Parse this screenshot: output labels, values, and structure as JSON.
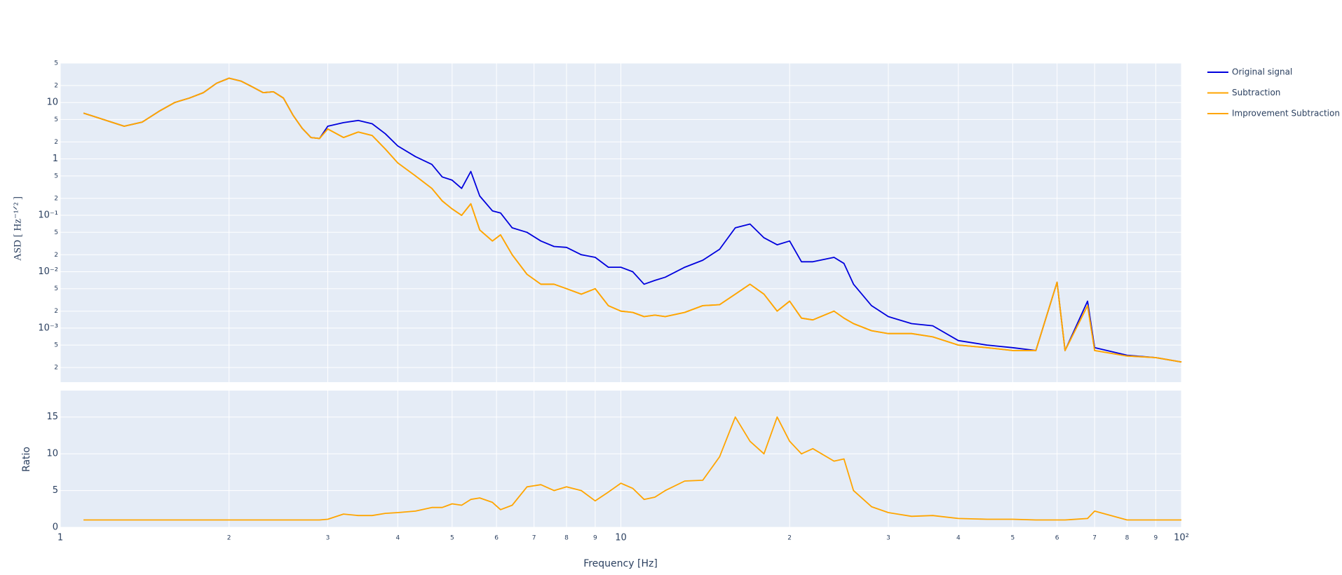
{
  "chart_data": [
    {
      "type": "line",
      "ylabel": "ASD [ Hz⁻¹ᐟ² ]",
      "xlog": true,
      "ylog": true,
      "grid": true,
      "legend": "right",
      "xlim": [
        1,
        100
      ],
      "ylim": [
        0.00011,
        50
      ],
      "yticks": [
        {
          "value": 50,
          "label": "5"
        },
        {
          "value": 20,
          "label": "2"
        },
        10,
        {
          "value": 5,
          "label": "5"
        },
        {
          "value": 2,
          "label": "2"
        },
        1,
        {
          "value": 0.5,
          "label": "5"
        },
        {
          "value": 0.2,
          "label": "2"
        },
        {
          "value": 0.1,
          "label": "10⁻¹"
        },
        {
          "value": 0.05,
          "label": "5"
        },
        {
          "value": 0.02,
          "label": "2"
        },
        {
          "value": 0.01,
          "label": "10⁻²"
        },
        {
          "value": 0.005,
          "label": "5"
        },
        {
          "value": 0.002,
          "label": "2"
        },
        {
          "value": 0.001,
          "label": "10⁻³"
        },
        {
          "value": 0.0005,
          "label": "5"
        },
        {
          "value": 0.0002,
          "label": "2"
        }
      ],
      "x": [
        1.1,
        1.3,
        1.4,
        1.5,
        1.6,
        1.7,
        1.8,
        1.9,
        2.0,
        2.1,
        2.2,
        2.3,
        2.4,
        2.5,
        2.6,
        2.7,
        2.8,
        2.9,
        3.0,
        3.2,
        3.4,
        3.6,
        3.8,
        4.0,
        4.3,
        4.6,
        4.8,
        5.0,
        5.2,
        5.4,
        5.6,
        5.9,
        6.1,
        6.4,
        6.8,
        7.2,
        7.6,
        8.0,
        8.5,
        9.0,
        9.5,
        10,
        10.5,
        11,
        11.5,
        12,
        13,
        14,
        15,
        16,
        17,
        18,
        19,
        20,
        21,
        22,
        24,
        25,
        26,
        28,
        30,
        33,
        36,
        40,
        45,
        50,
        55,
        60,
        62,
        68,
        70,
        80,
        90,
        100
      ],
      "series": [
        {
          "name": "Original signal",
          "color": "#0000dd",
          "values": [
            6.5,
            3.8,
            4.5,
            7,
            10,
            12,
            15,
            22,
            27,
            24,
            19,
            15,
            15.5,
            12,
            6,
            3.5,
            2.4,
            2.3,
            3.8,
            4.4,
            4.8,
            4.2,
            2.8,
            1.7,
            1.1,
            0.8,
            0.48,
            0.42,
            0.3,
            0.6,
            0.22,
            0.12,
            0.11,
            0.06,
            0.05,
            0.035,
            0.028,
            0.027,
            0.02,
            0.018,
            0.012,
            0.012,
            0.01,
            0.006,
            0.007,
            0.008,
            0.012,
            0.016,
            0.025,
            0.06,
            0.07,
            0.04,
            0.03,
            0.035,
            0.015,
            0.015,
            0.018,
            0.014,
            0.006,
            0.0025,
            0.0016,
            0.0012,
            0.0011,
            0.0006,
            0.0005,
            0.00045,
            0.0004,
            0.0065,
            0.0004,
            0.003,
            0.00045,
            0.00033,
            0.0003,
            0.00025
          ]
        },
        {
          "name": "Subtraction",
          "color": "#ffa500",
          "values": [
            6.5,
            3.8,
            4.5,
            7,
            10,
            12,
            15,
            22,
            27,
            24,
            19,
            15,
            15.5,
            12,
            6,
            3.5,
            2.4,
            2.3,
            3.4,
            2.4,
            3.0,
            2.6,
            1.5,
            0.85,
            0.5,
            0.3,
            0.18,
            0.13,
            0.1,
            0.16,
            0.055,
            0.035,
            0.045,
            0.02,
            0.009,
            0.006,
            0.006,
            0.005,
            0.004,
            0.005,
            0.0025,
            0.002,
            0.0019,
            0.0016,
            0.0017,
            0.0016,
            0.0019,
            0.0025,
            0.0026,
            0.004,
            0.006,
            0.004,
            0.002,
            0.003,
            0.0015,
            0.0014,
            0.002,
            0.0015,
            0.0012,
            0.0009,
            0.0008,
            0.0008,
            0.0007,
            0.0005,
            0.00045,
            0.0004,
            0.0004,
            0.0065,
            0.0004,
            0.0025,
            0.0004,
            0.00032,
            0.0003,
            0.00025
          ]
        },
        {
          "name": "Improvement Subtraction",
          "color": "#ffa500",
          "values": [
            6.5,
            3.8,
            4.5,
            7,
            10,
            12,
            15,
            22,
            27,
            24,
            19,
            15,
            15.5,
            12,
            6,
            3.5,
            2.4,
            2.3,
            3.4,
            2.4,
            3.0,
            2.6,
            1.5,
            0.85,
            0.5,
            0.3,
            0.18,
            0.13,
            0.1,
            0.16,
            0.055,
            0.035,
            0.045,
            0.02,
            0.009,
            0.006,
            0.006,
            0.005,
            0.004,
            0.005,
            0.0025,
            0.002,
            0.0019,
            0.0016,
            0.0017,
            0.0016,
            0.0019,
            0.0025,
            0.0026,
            0.004,
            0.006,
            0.004,
            0.002,
            0.003,
            0.0015,
            0.0014,
            0.002,
            0.0015,
            0.0012,
            0.0009,
            0.0008,
            0.0008,
            0.0007,
            0.0005,
            0.00045,
            0.0004,
            0.0004,
            0.0065,
            0.0004,
            0.0025,
            0.0004,
            0.00032,
            0.0003,
            0.00025
          ]
        }
      ]
    },
    {
      "type": "line",
      "xlabel": "Frequency [Hz]",
      "ylabel": "Ratio",
      "xlog": true,
      "grid": true,
      "xlim": [
        1,
        100
      ],
      "ylim": [
        0,
        18.6
      ],
      "yticks": [
        0,
        5,
        10,
        15
      ],
      "xticks": [
        1,
        2,
        3,
        4,
        5,
        6,
        7,
        8,
        9,
        10,
        {
          "value": 20,
          "label": "2"
        },
        {
          "value": 30,
          "label": "3"
        },
        {
          "value": 40,
          "label": "4"
        },
        {
          "value": 50,
          "label": "5"
        },
        {
          "value": 60,
          "label": "6"
        },
        {
          "value": 70,
          "label": "7"
        },
        {
          "value": 80,
          "label": "8"
        },
        {
          "value": 90,
          "label": "9"
        },
        {
          "value": 100,
          "label": "10²"
        }
      ],
      "x": [
        1.1,
        1.3,
        1.4,
        1.5,
        1.6,
        1.7,
        1.8,
        1.9,
        2.0,
        2.1,
        2.2,
        2.3,
        2.4,
        2.5,
        2.6,
        2.7,
        2.8,
        2.9,
        3.0,
        3.2,
        3.4,
        3.6,
        3.8,
        4.0,
        4.3,
        4.6,
        4.8,
        5.0,
        5.2,
        5.4,
        5.6,
        5.9,
        6.1,
        6.4,
        6.8,
        7.2,
        7.6,
        8.0,
        8.5,
        9.0,
        9.5,
        10,
        10.5,
        11,
        11.5,
        12,
        13,
        14,
        15,
        16,
        17,
        18,
        19,
        20,
        21,
        22,
        24,
        25,
        26,
        28,
        30,
        33,
        36,
        40,
        45,
        50,
        55,
        60,
        62,
        68,
        70,
        80,
        90,
        100
      ],
      "series": [
        {
          "color": "#ffa500",
          "values": [
            1,
            1,
            1,
            1,
            1,
            1,
            1,
            1,
            1,
            1,
            1,
            1,
            1,
            1,
            1,
            1,
            1,
            1,
            1.1,
            1.8,
            1.6,
            1.6,
            1.9,
            2,
            2.2,
            2.7,
            2.7,
            3.2,
            3,
            3.8,
            4,
            3.4,
            2.4,
            3,
            5.5,
            5.8,
            5,
            5.5,
            5,
            3.6,
            4.8,
            6,
            5.3,
            3.8,
            4.1,
            5,
            6.3,
            6.4,
            9.6,
            15,
            11.7,
            10,
            15,
            11.7,
            10,
            10.7,
            9,
            9.3,
            5,
            2.8,
            2,
            1.5,
            1.6,
            1.2,
            1.1,
            1.1,
            1,
            1,
            1,
            1.2,
            2.2,
            1,
            1,
            1
          ]
        }
      ]
    }
  ]
}
